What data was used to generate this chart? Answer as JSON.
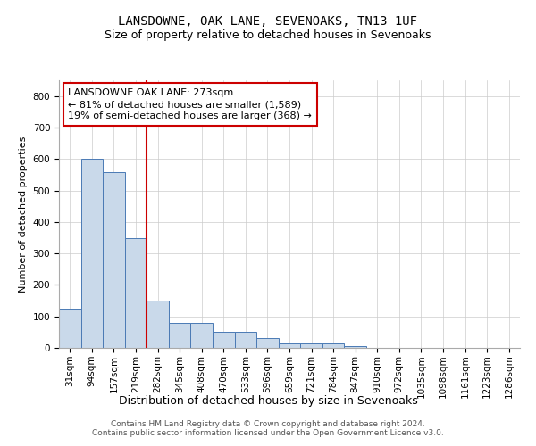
{
  "title": "LANSDOWNE, OAK LANE, SEVENOAKS, TN13 1UF",
  "subtitle": "Size of property relative to detached houses in Sevenoaks",
  "xlabel": "Distribution of detached houses by size in Sevenoaks",
  "ylabel": "Number of detached properties",
  "bar_color": "#c9d9ea",
  "bar_edge_color": "#4a7ab5",
  "bar_heights": [
    125,
    602,
    557,
    348,
    150,
    78,
    78,
    52,
    52,
    30,
    15,
    13,
    13,
    5,
    0,
    0,
    0,
    0,
    0,
    0,
    0
  ],
  "x_labels": [
    "31sqm",
    "94sqm",
    "157sqm",
    "219sqm",
    "282sqm",
    "345sqm",
    "408sqm",
    "470sqm",
    "533sqm",
    "596sqm",
    "659sqm",
    "721sqm",
    "784sqm",
    "847sqm",
    "910sqm",
    "972sqm",
    "1035sqm",
    "1098sqm",
    "1161sqm",
    "1223sqm",
    "1286sqm"
  ],
  "ylim": [
    0,
    850
  ],
  "yticks": [
    0,
    100,
    200,
    300,
    400,
    500,
    600,
    700,
    800
  ],
  "annotation_text": "LANSDOWNE OAK LANE: 273sqm\n← 81% of detached houses are smaller (1,589)\n19% of semi-detached houses are larger (368) →",
  "vline_color": "#cc0000",
  "annotation_box_color": "#ffffff",
  "annotation_box_edge_color": "#cc0000",
  "footer_text": "Contains HM Land Registry data © Crown copyright and database right 2024.\nContains public sector information licensed under the Open Government Licence v3.0.",
  "background_color": "#ffffff",
  "grid_color": "#cccccc",
  "title_fontsize": 10,
  "subtitle_fontsize": 9,
  "xlabel_fontsize": 9,
  "ylabel_fontsize": 8,
  "tick_fontsize": 7.5,
  "annotation_fontsize": 8,
  "footer_fontsize": 6.5
}
